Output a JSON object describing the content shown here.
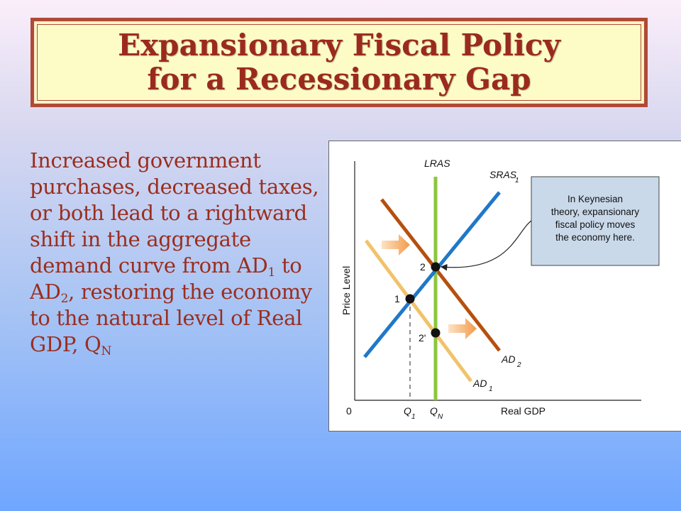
{
  "title": {
    "line1": "Expansionary Fiscal Policy",
    "line2": "for a Recessionary Gap"
  },
  "body": {
    "part1": "Increased government purchases, decreased taxes, or both lead to a rightward shift in the aggregate demand curve from AD",
    "sub1": "1",
    "part2": " to AD",
    "sub2": "2",
    "part3": ", restoring the economy to the natural level of Real GDP, Q",
    "sub3": "N"
  },
  "diagram": {
    "ylabel": "Price Level",
    "xlabel": "Real GDP",
    "origin": "0",
    "lras": "LRAS",
    "sras": {
      "main": "SRAS",
      "sub": "1"
    },
    "ad2": {
      "main": "AD",
      "sub": "2"
    },
    "ad1": {
      "main": "AD",
      "sub": "1"
    },
    "q1": {
      "main": "Q",
      "sub": "1"
    },
    "qn": {
      "main": "Q",
      "sub": "N"
    },
    "point1": "1",
    "point2": "2",
    "point2prime": "2'",
    "callout": {
      "line1": "In Keynesian",
      "line2": "theory, expansionary",
      "line3": "fiscal policy moves",
      "line4": "the economy here."
    },
    "colors": {
      "lras": "#8dc63f",
      "sras": "#1f78c8",
      "ad2": "#b5500f",
      "ad1": "#f0c36a",
      "callout_bg": "#c9d9ea",
      "arrow": "#f5a85a"
    }
  }
}
